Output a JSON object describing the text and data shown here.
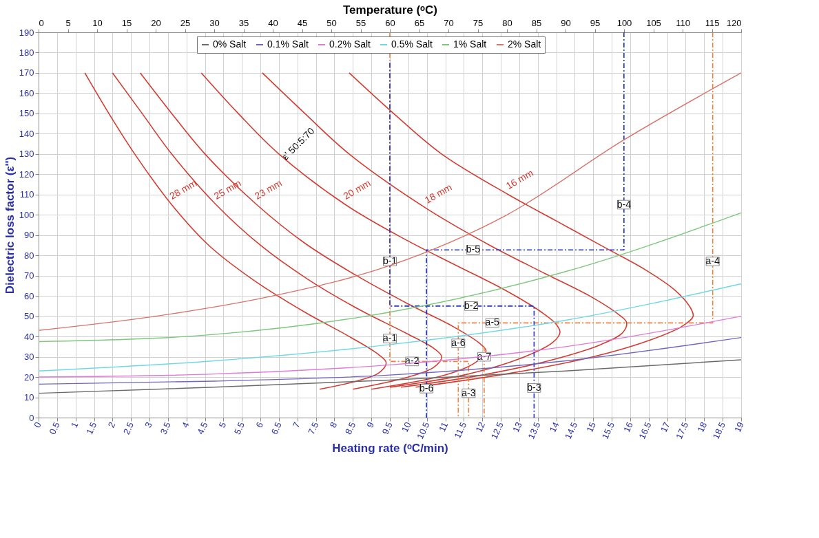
{
  "chart_data": {
    "type": "line",
    "xlabel": "Heating rate (ᵒC/min)",
    "x2label": "Temperature (ᵒC)",
    "ylabel": "Dielectric loss factor (ε'')",
    "xlim": [
      0,
      19
    ],
    "xticks": [
      0,
      0.5,
      1,
      1.5,
      2,
      2.5,
      3,
      3.5,
      4,
      4.5,
      5,
      5.5,
      6,
      6.5,
      7,
      7.5,
      8,
      8.5,
      9,
      9.5,
      10,
      10.5,
      11,
      11.5,
      12,
      12.5,
      13,
      13.5,
      14,
      14.5,
      15,
      15.5,
      16,
      16.5,
      17,
      17.5,
      18,
      18.5,
      19
    ],
    "x2lim": [
      0,
      120
    ],
    "x2ticks": [
      0,
      5,
      10,
      15,
      20,
      25,
      30,
      35,
      40,
      45,
      50,
      55,
      60,
      65,
      70,
      75,
      80,
      85,
      90,
      95,
      100,
      105,
      110,
      115,
      120
    ],
    "ylim": [
      0,
      190
    ],
    "yticks": [
      0,
      10,
      20,
      30,
      40,
      50,
      60,
      70,
      80,
      90,
      100,
      110,
      120,
      130,
      140,
      150,
      160,
      170,
      180,
      190
    ],
    "grid": true,
    "legend": "top",
    "line_style": "solid",
    "series": [
      {
        "name": "0% Salt",
        "color": "#6b6b6b",
        "axis": "x2",
        "x": [
          0,
          30,
          60,
          90,
          120
        ],
        "values": [
          12,
          15,
          18.5,
          23,
          28.5
        ]
      },
      {
        "name": "0.1% Salt",
        "color": "#7066c0",
        "axis": "x2",
        "x": [
          0,
          30,
          60,
          90,
          120
        ],
        "values": [
          16.5,
          18,
          21,
          28,
          39.5
        ]
      },
      {
        "name": "0.2% Salt",
        "color": "#e07ad8",
        "axis": "x2",
        "x": [
          0,
          30,
          60,
          90,
          120
        ],
        "values": [
          20,
          21.5,
          26,
          35,
          50
        ]
      },
      {
        "name": "0.5% Salt",
        "color": "#6ed8e8",
        "axis": "x2",
        "x": [
          0,
          30,
          60,
          90,
          120
        ],
        "values": [
          23,
          28,
          36,
          48,
          66
        ]
      },
      {
        "name": "1% Salt",
        "color": "#7cc87c",
        "axis": "x2",
        "x": [
          0,
          30,
          60,
          90,
          120
        ],
        "values": [
          37.5,
          41,
          52,
          72,
          101
        ]
      },
      {
        "name": "2% Salt",
        "color": "#d9736a",
        "axis": "x2",
        "x": [
          0,
          20,
          40,
          60,
          80,
          100,
          120
        ],
        "values": [
          43,
          50,
          60,
          75,
          100,
          137,
          170
        ]
      },
      {
        "name": "28 mm",
        "color": "#d23c32",
        "x": [
          1.25,
          1.9,
          2.6,
          3.6,
          4.6,
          5.8,
          7.2,
          8.4,
          9.2,
          9.4,
          9.2,
          8.6,
          7.6
        ],
        "values": [
          170,
          150,
          130,
          105,
          85,
          68,
          52,
          40,
          31,
          27,
          22,
          18,
          14
        ]
      },
      {
        "name": "25 mm",
        "color": "#d23c32",
        "x": [
          2.0,
          2.8,
          3.6,
          4.8,
          6.0,
          7.3,
          8.7,
          9.9,
          10.7,
          10.9,
          10.7,
          10.0,
          8.5
        ],
        "values": [
          170,
          150,
          130,
          105,
          85,
          68,
          53,
          42,
          34,
          30,
          25,
          20,
          14
        ]
      },
      {
        "name": "23 mm",
        "color": "#d23c32",
        "x": [
          2.75,
          3.6,
          4.5,
          5.9,
          7.2,
          8.6,
          10.0,
          11.2,
          11.9,
          12.1,
          11.8,
          11.0,
          9.0
        ],
        "values": [
          170,
          150,
          130,
          105,
          86,
          70,
          56,
          45,
          37,
          33,
          27,
          21,
          14
        ]
      },
      {
        "name": "20 mm",
        "color": "#d23c32",
        "x": [
          4.4,
          5.4,
          6.5,
          8.3,
          9.9,
          11.3,
          12.6,
          13.6,
          14.0,
          14.1,
          13.9,
          13.0,
          11.5,
          9.5
        ],
        "values": [
          170,
          150,
          130,
          105,
          88,
          75,
          63,
          52,
          46,
          42,
          37,
          29,
          21,
          15
        ]
      },
      {
        "name": "18 mm",
        "color": "#d23c32",
        "x": [
          6.05,
          7.2,
          8.4,
          10.5,
          12.2,
          13.7,
          14.9,
          15.6,
          15.9,
          15.8,
          15.2,
          14.0,
          12.0,
          9.8
        ],
        "values": [
          170,
          150,
          130,
          103,
          85,
          71,
          60,
          52,
          47,
          42,
          36,
          29,
          21,
          15
        ]
      },
      {
        "name": "16 mm",
        "color": "#d23c32",
        "x": [
          8.4,
          9.6,
          10.9,
          12.7,
          14.0,
          15.3,
          16.4,
          17.2,
          17.6,
          17.7,
          17.4,
          16.5,
          15.0,
          12.8,
          10.2
        ],
        "values": [
          170,
          150,
          130,
          110,
          97,
          84,
          73,
          63,
          55,
          50,
          45,
          38,
          30,
          22,
          15
        ]
      },
      {
        "color": "#f07f3c",
        "line_style": "dashed",
        "x": [
          9.5,
          9.5,
          11.63,
          11.63
        ],
        "values": [
          190,
          27.7,
          27.7,
          0
        ]
      },
      {
        "color": "#f07f3c",
        "line_style": "dashed",
        "x": [
          18.23,
          18.23,
          11.35,
          11.35
        ],
        "values": [
          190,
          46.7,
          46.7,
          0
        ]
      },
      {
        "color": "#f07f3c",
        "line_style": "dashed",
        "x": [
          12.05,
          12.05
        ],
        "values": [
          35,
          0
        ]
      },
      {
        "color": "#1f2fbf",
        "line_style": "dashed",
        "x": [
          9.5,
          9.5,
          13.4,
          13.4
        ],
        "values": [
          175,
          55,
          55,
          0
        ]
      },
      {
        "color": "#1f2fbf",
        "line_style": "dashed",
        "x": [
          15.83,
          15.83,
          10.49,
          10.49
        ],
        "values": [
          190,
          82.7,
          82.7,
          0
        ]
      }
    ],
    "annotations": [
      "ε' 50:5:70",
      {
        "text": "a-1",
        "x": 9.5,
        "y": 39
      },
      {
        "text": "a-2",
        "x": 10.1,
        "y": 27.7
      },
      {
        "text": "a-3",
        "x": 11.63,
        "y": 12
      },
      {
        "text": "a-4",
        "x": 18.23,
        "y": 77
      },
      {
        "text": "a-5",
        "x": 12.27,
        "y": 46.7
      },
      {
        "text": "a-6",
        "x": 11.35,
        "y": 36.6
      },
      {
        "text": "a-7",
        "x": 12.05,
        "y": 30
      },
      {
        "text": "b-1",
        "x": 9.5,
        "y": 77
      },
      {
        "text": "b-2",
        "x": 11.7,
        "y": 55
      },
      {
        "text": "b-3",
        "x": 13.4,
        "y": 14.6
      },
      {
        "text": "b-4",
        "x": 15.83,
        "y": 105
      },
      {
        "text": "b-5",
        "x": 11.75,
        "y": 82.7
      },
      {
        "text": "b-6",
        "x": 10.49,
        "y": 14.3
      }
    ]
  }
}
